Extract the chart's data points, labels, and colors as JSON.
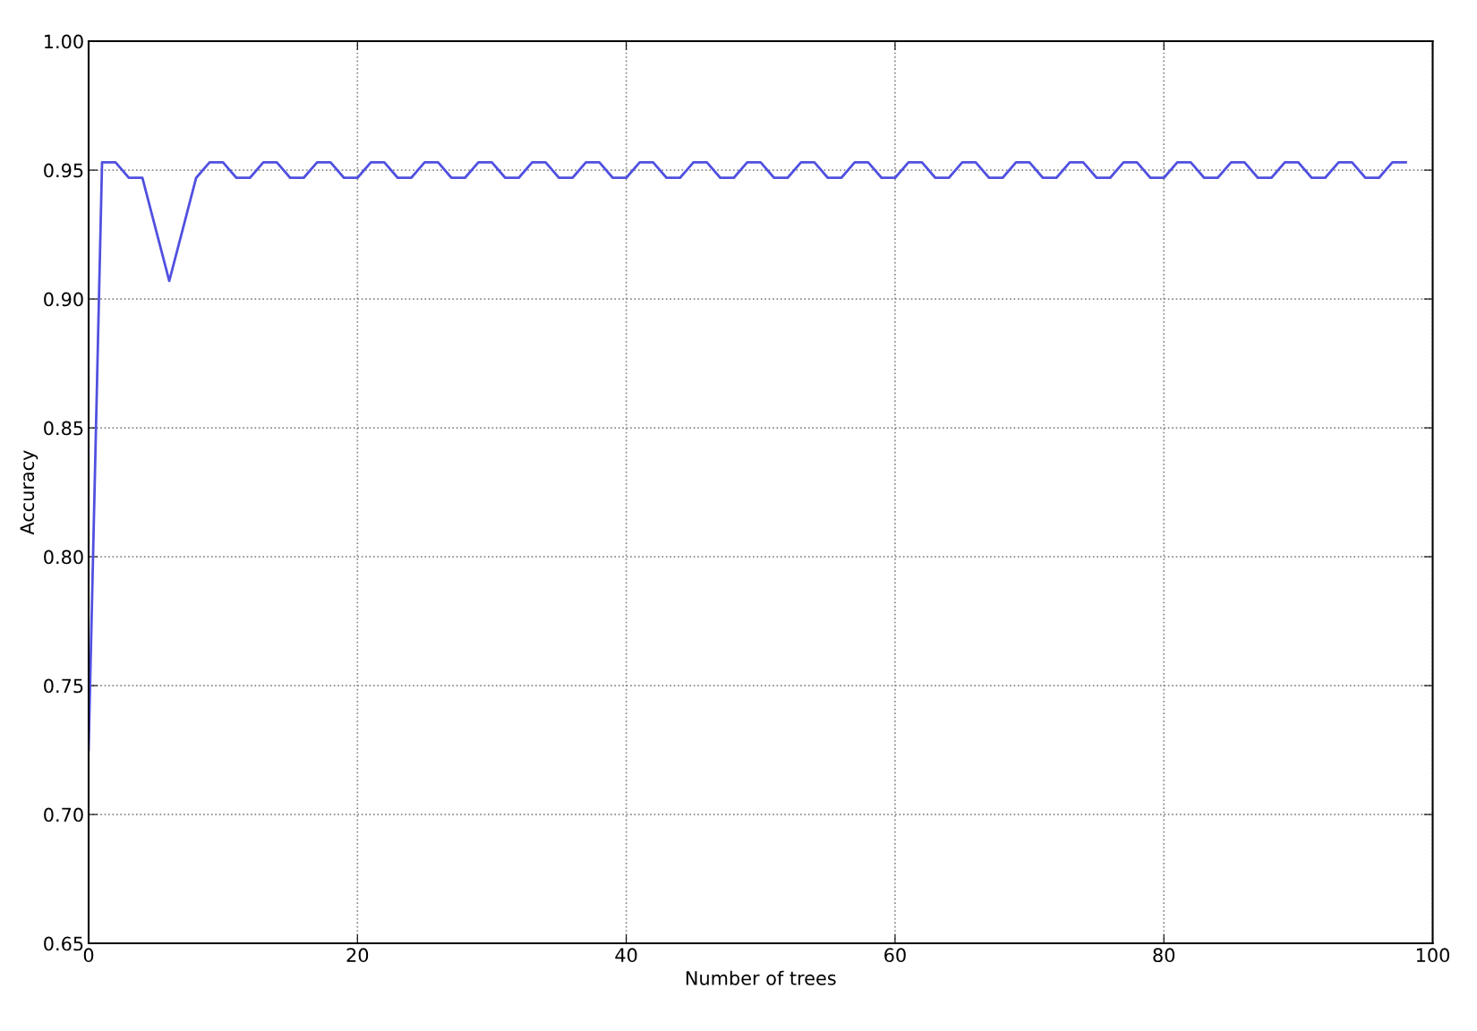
{
  "chart_data": {
    "type": "line",
    "xlabel": "Number of trees",
    "ylabel": "Accuracy",
    "x": [
      0,
      1,
      2,
      3,
      4,
      5,
      6,
      7,
      8,
      9,
      10,
      11,
      12,
      13,
      14,
      15,
      16,
      17,
      18,
      19,
      20,
      21,
      22,
      23,
      24,
      25,
      26,
      27,
      28,
      29,
      30,
      31,
      32,
      33,
      34,
      35,
      36,
      37,
      38,
      39,
      40,
      41,
      42,
      43,
      44,
      45,
      46,
      47,
      48,
      49,
      50,
      51,
      52,
      53,
      54,
      55,
      56,
      57,
      58,
      59,
      60,
      61,
      62,
      63,
      64,
      65,
      66,
      67,
      68,
      69,
      70,
      71,
      72,
      73,
      74,
      75,
      76,
      77,
      78,
      79,
      80,
      81,
      82,
      83,
      84,
      85,
      86,
      87,
      88,
      89,
      90,
      91,
      92,
      93,
      94,
      95,
      96,
      97,
      98
    ],
    "series": [
      {
        "color": "#5050e0",
        "values": [
          0.725,
          0.953,
          0.953,
          0.947,
          0.947,
          0.927,
          0.907,
          0.927,
          0.947,
          0.953,
          0.953,
          0.947,
          0.947,
          0.953,
          0.953,
          0.947,
          0.947,
          0.953,
          0.953,
          0.947,
          0.947,
          0.953,
          0.953,
          0.947,
          0.947,
          0.953,
          0.953,
          0.947,
          0.947,
          0.953,
          0.953,
          0.947,
          0.947,
          0.953,
          0.953,
          0.947,
          0.947,
          0.953,
          0.953,
          0.947,
          0.947,
          0.953,
          0.953,
          0.947,
          0.947,
          0.953,
          0.953,
          0.947,
          0.947,
          0.953,
          0.953,
          0.947,
          0.947,
          0.953,
          0.953,
          0.947,
          0.947,
          0.953,
          0.953,
          0.947,
          0.947,
          0.953,
          0.953,
          0.947,
          0.947,
          0.953,
          0.953,
          0.947,
          0.947,
          0.953,
          0.953,
          0.947,
          0.947,
          0.953,
          0.953,
          0.947,
          0.947,
          0.953,
          0.953,
          0.947,
          0.947,
          0.953,
          0.953,
          0.947,
          0.947,
          0.953,
          0.953,
          0.947,
          0.947,
          0.953,
          0.953,
          0.947,
          0.947,
          0.953,
          0.953,
          0.947,
          0.947,
          0.953,
          0.953
        ]
      }
    ],
    "xlim": [
      0,
      100
    ],
    "xticks": [
      0,
      20,
      40,
      60,
      80,
      100
    ],
    "ylim": [
      0.65,
      1.0
    ],
    "yticks": [
      {
        "value": 0.65,
        "label": "0.65"
      },
      {
        "value": 0.7,
        "label": "0.70"
      },
      {
        "value": 0.75,
        "label": "0.75"
      },
      {
        "value": 0.8,
        "label": "0.80"
      },
      {
        "value": 0.85,
        "label": "0.85"
      },
      {
        "value": 0.9,
        "label": "0.90"
      },
      {
        "value": 0.95,
        "label": "0.95"
      },
      {
        "value": 1.0,
        "label": "1.00"
      }
    ],
    "grid": true,
    "line_style": "solid"
  }
}
